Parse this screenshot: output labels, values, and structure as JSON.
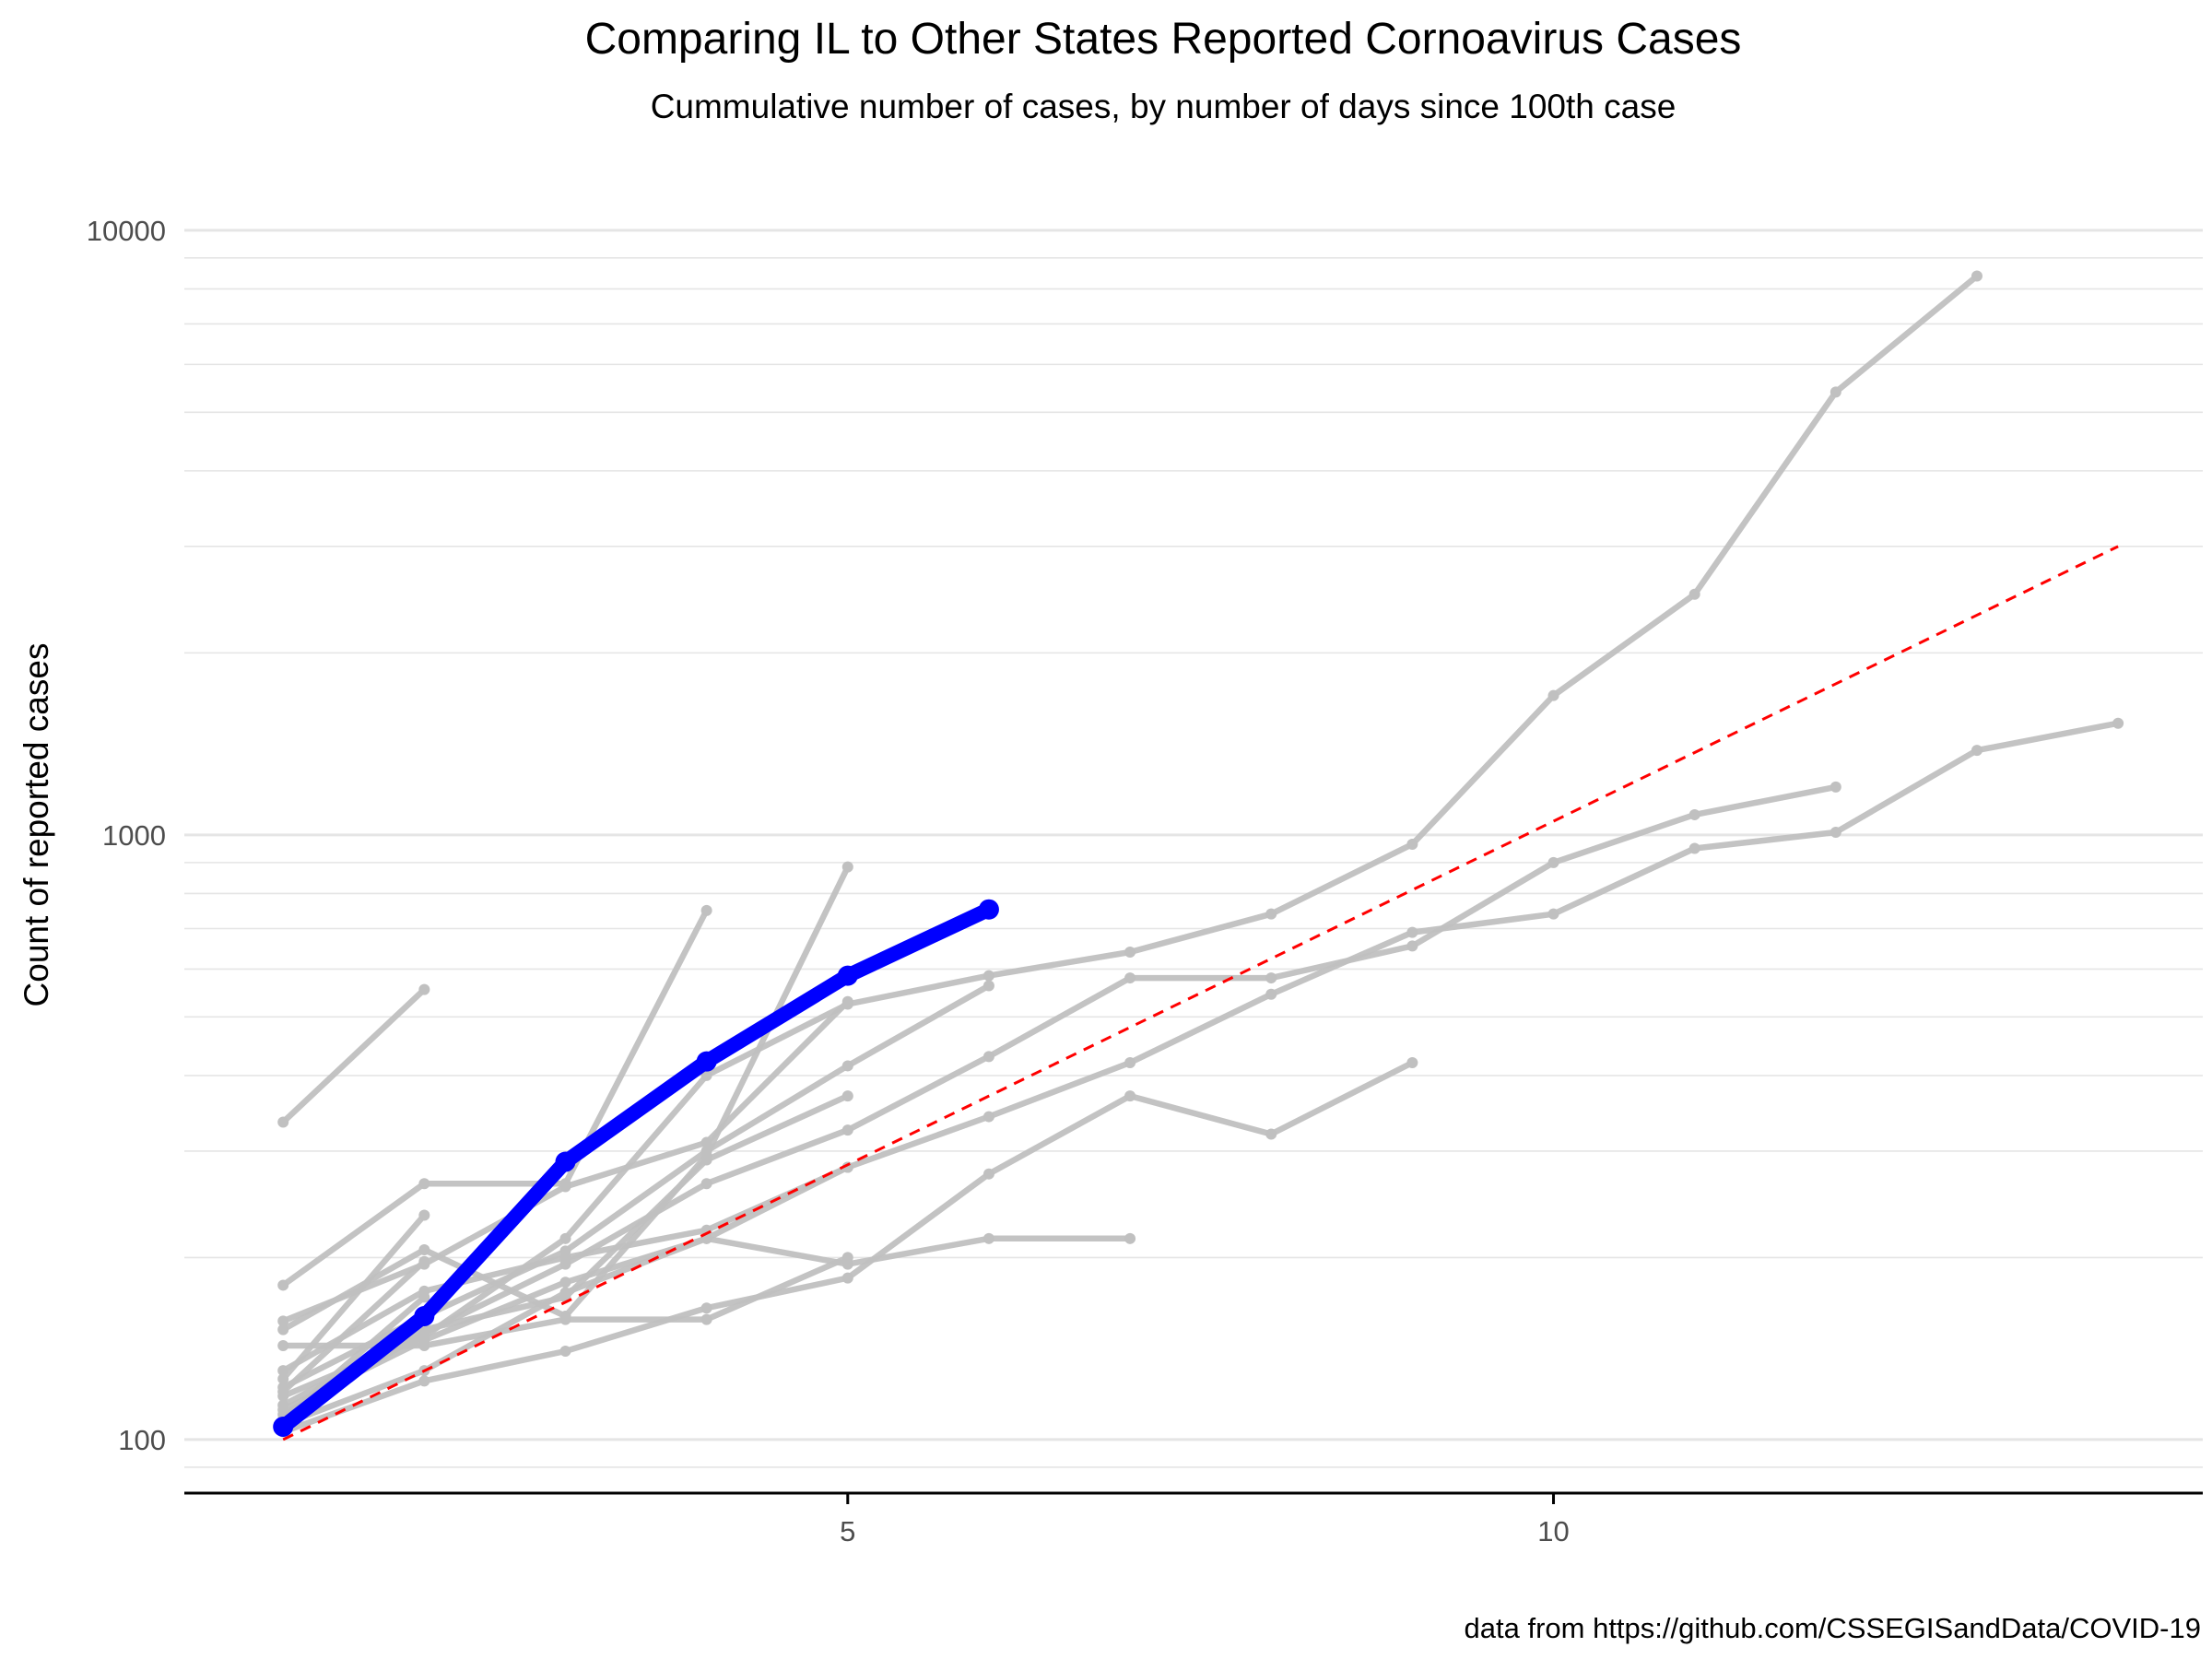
{
  "chart_data": {
    "type": "line",
    "title": "Comparing IL to Other States Reported Cornoavirus Cases",
    "subtitle": "Cummulative number of cases, by number of days since 100th case",
    "xlabel": "",
    "ylabel": "Count of reported cases",
    "caption": "data from https://github.com/CSSEGISandData/COVID-19",
    "xlim": [
      0.3,
      14.6
    ],
    "ylim": [
      83,
      11500
    ],
    "y_scale": "log10",
    "x_ticks": [
      5,
      10
    ],
    "x_tick_labels": [
      "5",
      "10"
    ],
    "y_ticks": [
      100,
      1000,
      10000
    ],
    "y_tick_labels": [
      "100",
      "1000",
      "10000"
    ],
    "grid": "horizontal-major-and-minor",
    "legend": "none",
    "colors": {
      "highlight": "#0000ff",
      "other_states": "#c0c0c0",
      "reference": "#ff0000",
      "grid": "#e5e5e5",
      "axis": "#000000",
      "text": "#000000",
      "tick_text": "#4d4d4d"
    },
    "highlight_series": {
      "x": [
        1,
        2,
        3,
        4,
        5,
        6
      ],
      "values": [
        105,
        160,
        288,
        422,
        585,
        753
      ]
    },
    "series": [
      {
        "x": [
          1,
          2,
          3,
          4,
          5,
          6,
          7,
          8,
          9,
          10,
          11,
          12,
          13
        ],
        "values": [
          118,
          148,
          215,
          400,
          525,
          585,
          640,
          740,
          965,
          1700,
          2500,
          5400,
          8400
        ]
      },
      {
        "x": [
          1,
          2,
          3,
          4,
          5,
          6,
          7,
          8,
          9,
          10,
          11,
          12,
          13,
          14
        ],
        "values": [
          106,
          130,
          175,
          215,
          282,
          342,
          420,
          545,
          690,
          740,
          950,
          1010,
          1380,
          1530
        ]
      },
      {
        "x": [
          1,
          2,
          3,
          4,
          5,
          6,
          7,
          8,
          9,
          10,
          11,
          12
        ],
        "values": [
          110,
          150,
          195,
          265,
          325,
          430,
          580,
          580,
          655,
          900,
          1080,
          1200
        ]
      },
      {
        "x": [
          1,
          2,
          3,
          4,
          5,
          6
        ],
        "values": [
          122,
          160,
          205,
          300,
          415,
          563
        ]
      },
      {
        "x": [
          1,
          2,
          3,
          4,
          5,
          6,
          7
        ],
        "values": [
          112,
          146,
          182,
          215,
          195,
          215,
          215
        ]
      },
      {
        "x": [
          1,
          2,
          3,
          4,
          5,
          6,
          7,
          8,
          9
        ],
        "values": [
          103,
          125,
          140,
          165,
          185,
          275,
          370,
          320,
          420
        ]
      },
      {
        "x": [
          1,
          2,
          3,
          4,
          5
        ],
        "values": [
          157,
          195,
          262,
          310,
          530
        ]
      },
      {
        "x": [
          1,
          2,
          3,
          4,
          5
        ],
        "values": [
          143,
          143,
          158,
          158,
          200
        ]
      },
      {
        "x": [
          1,
          2,
          3,
          4,
          5
        ],
        "values": [
          114,
          152,
          172,
          290,
          370
        ]
      },
      {
        "x": [
          1,
          2,
          3,
          4,
          5
        ],
        "values": [
          130,
          176,
          200,
          222,
          282
        ]
      },
      {
        "x": [
          1,
          2,
          3,
          4
        ],
        "values": [
          180,
          265,
          265,
          750
        ]
      },
      {
        "x": [
          1,
          2,
          3,
          4,
          5
        ],
        "values": [
          152,
          206,
          160,
          295,
          885
        ]
      },
      {
        "x": [
          1,
          2
        ],
        "values": [
          335,
          555
        ]
      },
      {
        "x": [
          1,
          2
        ],
        "values": [
          126,
          235
        ]
      },
      {
        "x": [
          1,
          2
        ],
        "values": [
          120,
          197
        ]
      },
      {
        "x": [
          1,
          2
        ],
        "values": [
          108,
          172
        ]
      }
    ],
    "reference_line": {
      "x": [
        1,
        14
      ],
      "values": [
        100,
        3000
      ]
    }
  }
}
